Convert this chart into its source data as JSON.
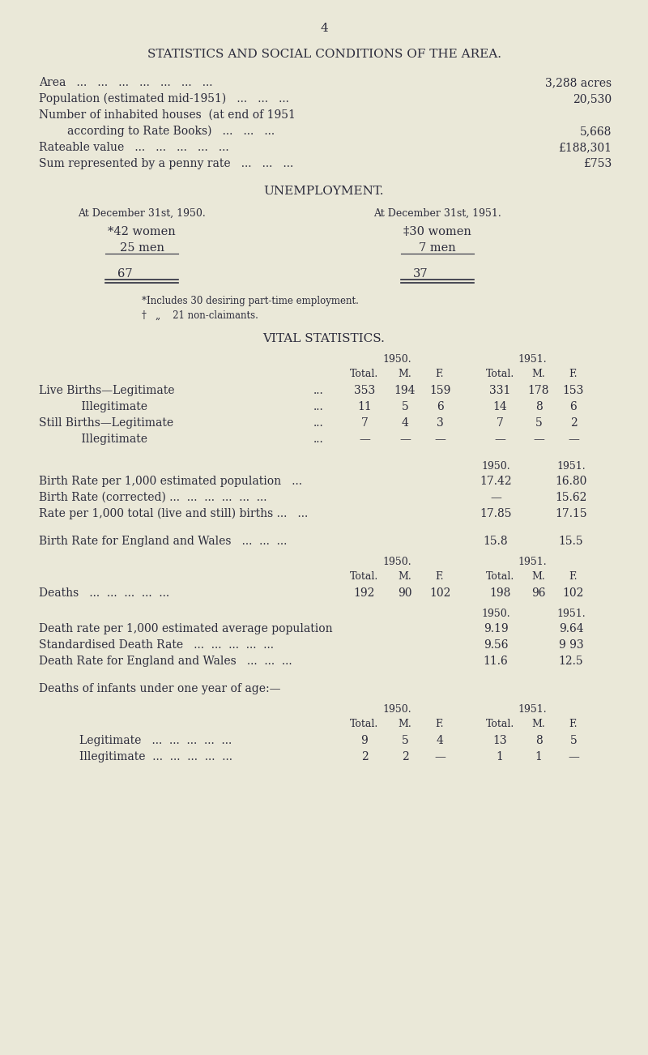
{
  "bg_color": "#eae8d8",
  "text_color": "#2c2c3c",
  "page_number": "4",
  "title": "STATISTICS AND SOCIAL CONDITIONS OF THE AREA.",
  "area_lines": [
    [
      "Area   ...   ...   ...   ...   ...   ...   ...",
      "3,288 acres"
    ],
    [
      "Population (estimated mid-1951)   ...   ...   ...",
      "20,530"
    ],
    [
      "Number of inhabited houses  (at end of 1951",
      ""
    ],
    [
      "        according to Rate Books)   ...   ...   ...",
      "5,668"
    ],
    [
      "Rateable value   ...   ...   ...   ...   ...",
      "£188,301"
    ],
    [
      "Sum represented by a penny rate   ...   ...   ...",
      "£753"
    ]
  ],
  "unemployment_title": "UNEMPLOYMENT.",
  "unemp_col1_header": "At December 31st, 1950.",
  "unemp_col2_header": "At December 31st, 1951.",
  "unemp_col1_row1": "*42 women",
  "unemp_col1_row2": "25 men",
  "unemp_col2_row1": "‡30 women",
  "unemp_col2_row2": "7 men",
  "unemp_col1_total": "67",
  "unemp_col2_total": "37",
  "unemp_note1": "*Includes 30 desiring part-time employment.",
  "unemp_note2": "†   „    21 non-claimants.",
  "vital_title": "VITAL STATISTICS.",
  "vital_rows": [
    [
      "Live Births—Legitimate",
      "...",
      "353",
      "194",
      "159",
      "331",
      "178",
      "153"
    ],
    [
      "            Illegitimate",
      "...",
      "11",
      "5",
      "6",
      "14",
      "8",
      "6"
    ],
    [
      "Still Births—Legitimate",
      "...",
      "7",
      "4",
      "3",
      "7",
      "5",
      "2"
    ],
    [
      "            Illegitimate",
      "...",
      "—",
      "—",
      "—",
      "—",
      "—",
      "—"
    ]
  ],
  "birth_rate_rows": [
    [
      "Birth Rate per 1,000 estimated population   ...",
      "17.42",
      "16.80"
    ],
    [
      "Birth Rate (corrected) ...  ...  ...  ...  ...  ...",
      "—",
      "15.62"
    ],
    [
      "Rate per 1,000 total (live and still) births ...   ...",
      "17.85",
      "17.15"
    ]
  ],
  "birth_rate_ew_row": [
    "Birth Rate for England and Wales   ...  ...  ...",
    "15.8",
    "15.5"
  ],
  "deaths_row": [
    "Deaths   ...  ...  ...  ...  ...",
    "192",
    "90",
    "102",
    "198",
    "96",
    "102"
  ],
  "death_rate_rows": [
    [
      "Death rate per 1,000 estimated average population",
      "9.19",
      "9.64"
    ],
    [
      "Standardised Death Rate   ...  ...  ...  ...  ...",
      "9.56",
      "9 93"
    ],
    [
      "Death Rate for England and Wales   ...  ...  ...",
      "11.6",
      "12.5"
    ]
  ],
  "infant_title": "Deaths of infants under one year of age:—",
  "infant_rows": [
    [
      "Legitimate   ...  ...  ...  ...  ...",
      "9",
      "5",
      "4",
      "13",
      "8",
      "5"
    ],
    [
      "Illegitimate  ...  ...  ...  ...  ...",
      "2",
      "2",
      "—",
      "1",
      "1",
      "—"
    ]
  ]
}
